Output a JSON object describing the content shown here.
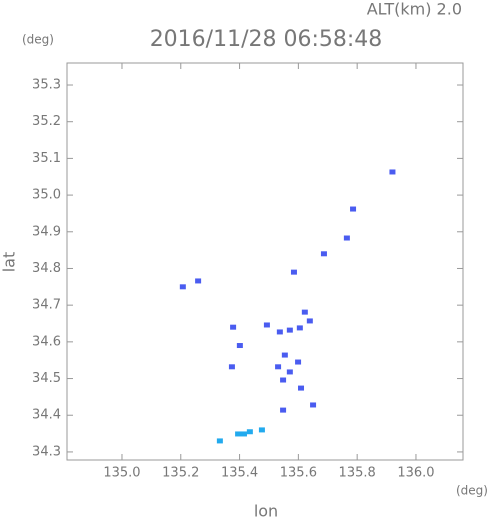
{
  "chart_data": {
    "type": "scatter",
    "title": "2016/11/28 06:58:48",
    "subtitle": "ALT(km) 2.0",
    "x_label": "lon",
    "y_label": "lat",
    "x_unit": "(deg)",
    "y_unit": "(deg)",
    "xlim": [
      134.813,
      136.16
    ],
    "ylim": [
      34.278,
      35.36
    ],
    "xticks": [
      {
        "value": 135,
        "label": "135.0"
      },
      135.2,
      135.4,
      135.6,
      135.8,
      {
        "value": 136,
        "label": "136.0"
      }
    ],
    "yticks": [
      34.3,
      34.4,
      34.5,
      34.6,
      34.7,
      34.8,
      34.9,
      {
        "value": 35,
        "label": "35.0"
      },
      35.1,
      35.2,
      35.3
    ],
    "series": [
      {
        "color": "#4a5cf0",
        "x": [
          135.92,
          135.786,
          135.765,
          135.585,
          135.687,
          135.207,
          135.259,
          135.622,
          135.639,
          135.493,
          135.378,
          135.401,
          135.537,
          135.571,
          135.605,
          135.554,
          135.531,
          135.571,
          135.548,
          135.599,
          135.609,
          135.374,
          135.548,
          135.65
        ],
        "y": [
          35.063,
          34.962,
          34.883,
          34.79,
          34.84,
          34.75,
          34.766,
          34.681,
          34.657,
          34.646,
          34.64,
          34.59,
          34.627,
          34.632,
          34.638,
          34.564,
          34.532,
          34.518,
          34.496,
          34.545,
          34.474,
          34.532,
          34.414,
          34.428
        ]
      },
      {
        "color": "#22aaee",
        "x": [
          135.333,
          135.395,
          135.415,
          135.435,
          135.476
        ],
        "y": [
          34.33,
          34.349,
          34.349,
          34.355,
          34.36
        ]
      }
    ]
  }
}
